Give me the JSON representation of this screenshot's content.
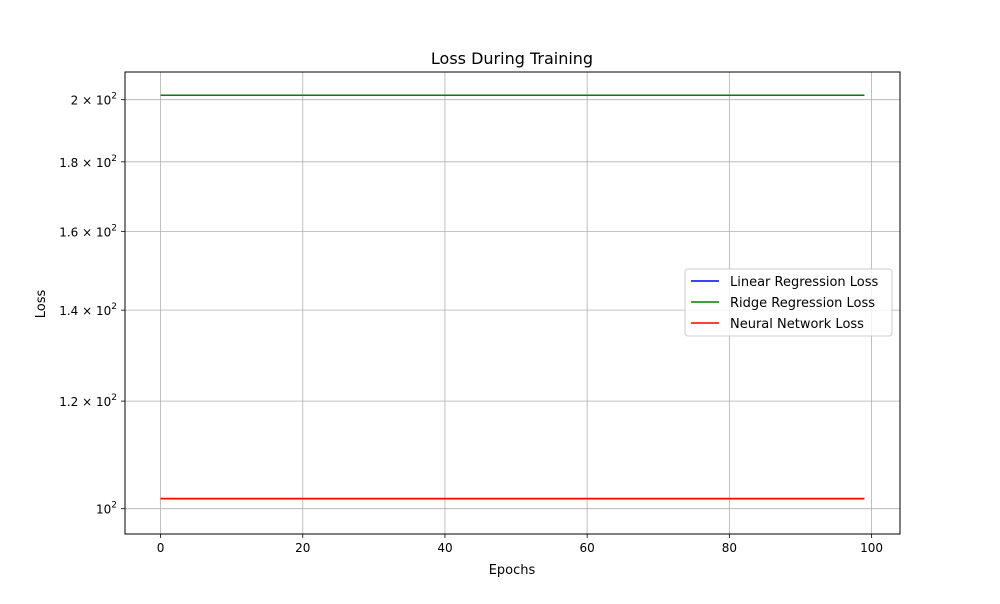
{
  "chart_data": {
    "type": "line",
    "title": "Loss During Training",
    "xlabel": "Epochs",
    "ylabel": "Loss",
    "yscale": "log",
    "xlim": [
      -5,
      104
    ],
    "ylim": [
      95.8,
      209.6
    ],
    "grid": true,
    "legend_position": "center-right",
    "x_ticks": [
      {
        "value": 0,
        "label": "0"
      },
      {
        "value": 20,
        "label": "20"
      },
      {
        "value": 40,
        "label": "40"
      },
      {
        "value": 60,
        "label": "60"
      },
      {
        "value": 80,
        "label": "80"
      },
      {
        "value": 100,
        "label": "100"
      }
    ],
    "y_ticks": [
      {
        "value": 100,
        "mantissa": "",
        "exponent": "2"
      },
      {
        "value": 120,
        "mantissa": "1.2",
        "exponent": "2"
      },
      {
        "value": 140,
        "mantissa": "1.4",
        "exponent": "2"
      },
      {
        "value": 160,
        "mantissa": "1.6",
        "exponent": "2"
      },
      {
        "value": 180,
        "mantissa": "1.8",
        "exponent": "2"
      },
      {
        "value": 200,
        "mantissa": "2",
        "exponent": "2"
      }
    ],
    "series": [
      {
        "name": "Linear Regression Loss",
        "color": "#0000ff",
        "x": [
          0,
          99
        ],
        "y": [
          101.7,
          101.7
        ]
      },
      {
        "name": "Ridge Regression Loss",
        "color": "#008000",
        "x": [
          0,
          99
        ],
        "y": [
          201.5,
          201.5
        ]
      },
      {
        "name": "Neural Network Loss",
        "color": "#ff0000",
        "x": [
          0,
          99
        ],
        "y": [
          101.7,
          101.7
        ]
      }
    ]
  }
}
